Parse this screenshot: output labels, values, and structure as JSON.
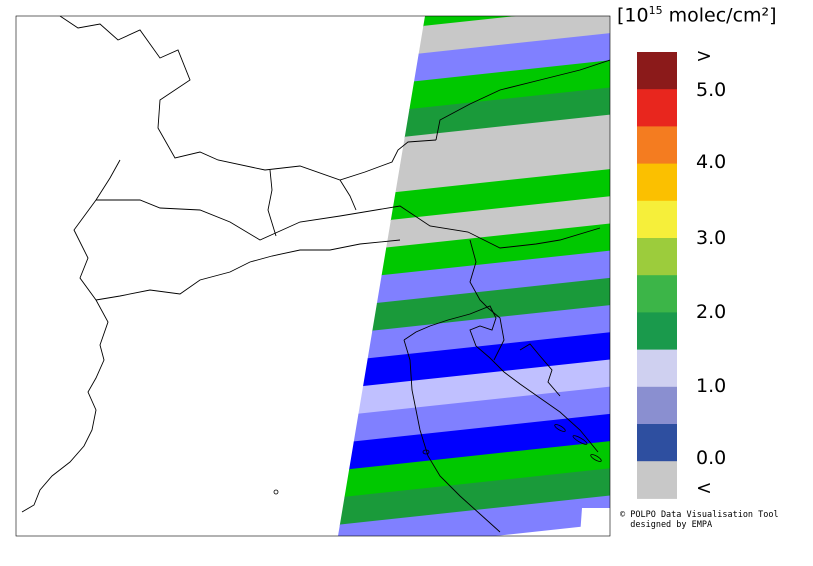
{
  "unit": {
    "prefix": "[10",
    "exponent": "15",
    "suffix": " molec/cm²]"
  },
  "legend": {
    "labels": [
      ">",
      "5.0",
      "4.0",
      "3.0",
      "2.0",
      "1.0",
      "0.0",
      "<"
    ],
    "colors": [
      "#8b1a1a",
      "#e8261e",
      "#f47c20",
      "#fbc000",
      "#f6ef3a",
      "#9ccc3c",
      "#3cb548",
      "#1a9a4c",
      "#cfd0f0",
      "#8a8fd0",
      "#2e4fa0",
      "#c8c8c8"
    ]
  },
  "swath": {
    "stripe_colors": [
      "#00c800",
      "#c8c8c8",
      "#8080ff",
      "#00c800",
      "#1a9a3a",
      "#c8c8c8",
      "#c8c8c8",
      "#00c800",
      "#c8c8c8",
      "#00c800",
      "#8080ff",
      "#1a9a3a",
      "#8080ff",
      "#0000ff",
      "#c0c0ff",
      "#8080ff",
      "#0000ff",
      "#00c800",
      "#1a9a3a",
      "#8080ff"
    ]
  },
  "credit": {
    "line1": "© POLPO Data Visualisation Tool",
    "line2": "  designed by EMPA"
  }
}
